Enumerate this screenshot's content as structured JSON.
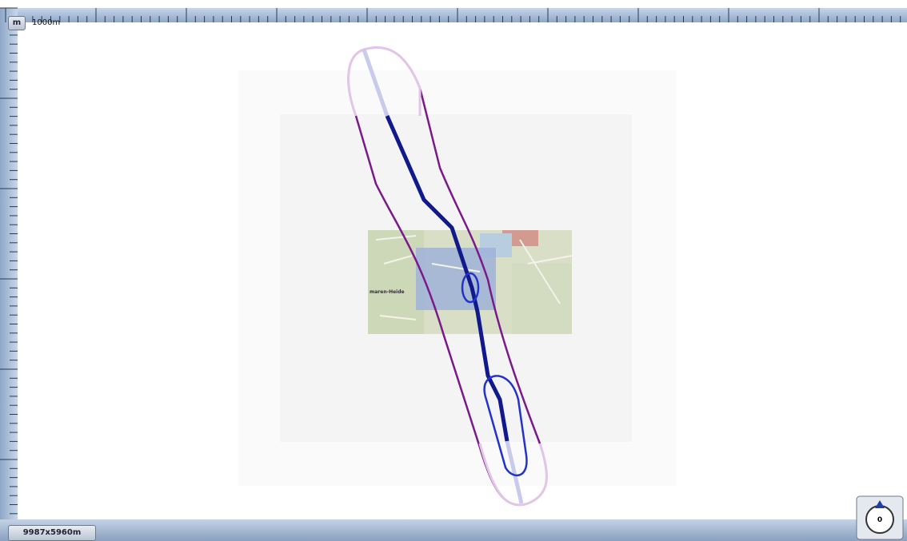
{
  "ruler": {
    "unit_button": "m",
    "scale_label": "1000m"
  },
  "map": {
    "place_label": "maren-Heide"
  },
  "status": {
    "map_size": "9987x5960m"
  },
  "compass": {
    "heading": "0"
  }
}
